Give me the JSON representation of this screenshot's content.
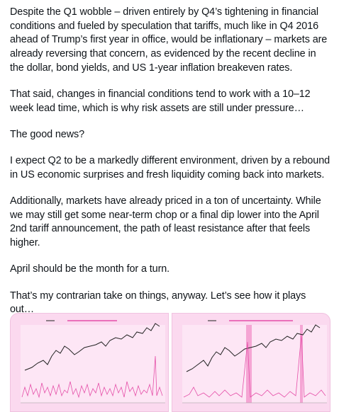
{
  "post": {
    "paragraphs": [
      "Despite the Q1 wobble – driven entirely by Q4’s tightening in financial conditions and fueled by speculation that tariffs, much like in Q4 2016 ahead of Trump’s first year in office, would be inflationary – markets are already reversing that concern, as evidenced by the recent decline in the dollar, bond yields, and US 1-year inflation breakeven rates.",
      "That said, changes in financial conditions tend to work with a 10–12 week lead time, which is why risk assets are still under pressure…",
      "The good news?",
      "I expect Q2 to be a markedly different environment, driven by a rebound in US economic surprises and fresh liquidity coming back into markets.",
      "Additionally, markets have already priced in a ton of uncertainty. While we may still get some near-term chop or a final dip lower into the April 2nd tariff announcement, the path of least resistance after that feels higher.",
      "April should be the month for a turn.",
      "That’s my contrarian take on things, anyway. Let’s see how it plays out…"
    ]
  }
}
